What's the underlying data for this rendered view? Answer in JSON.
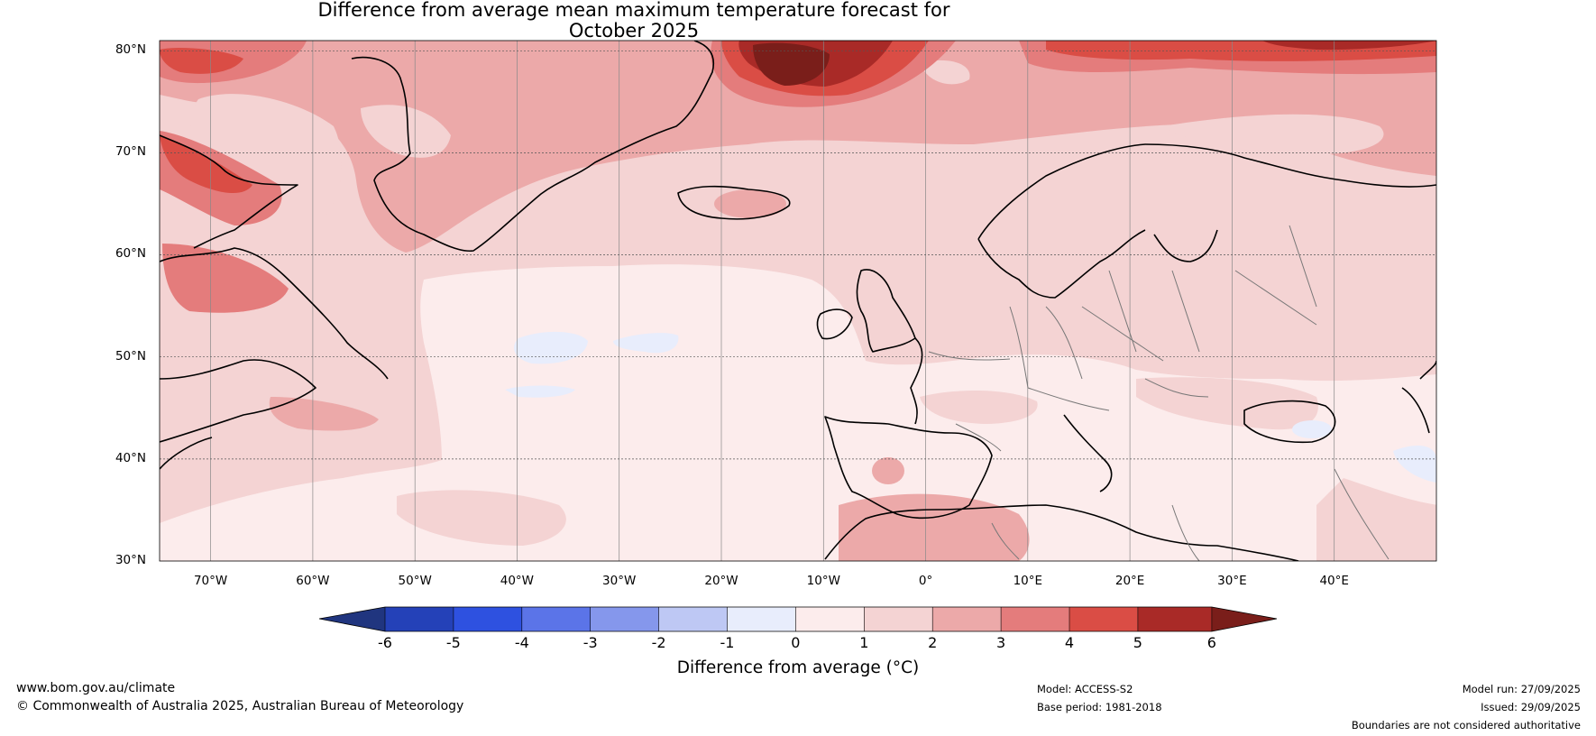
{
  "title": {
    "line1": "Difference from average mean maximum temperature forecast for",
    "line2": "October 2025"
  },
  "map": {
    "lat_labels": [
      "80°N",
      "70°N",
      "60°N",
      "50°N",
      "40°N",
      "30°N"
    ],
    "lon_labels": [
      "70°W",
      "60°W",
      "50°W",
      "40°W",
      "30°W",
      "20°W",
      "10°W",
      "0°",
      "10°E",
      "20°E",
      "30°E",
      "40°E"
    ],
    "lat_range": [
      30,
      81
    ],
    "lon_range": [
      -75,
      50
    ]
  },
  "colorbar": {
    "ticks": [
      "-6",
      "-5",
      "-4",
      "-3",
      "-2",
      "-1",
      "0",
      "1",
      "2",
      "3",
      "4",
      "5",
      "6"
    ],
    "colors": [
      "#20357f",
      "#2441b8",
      "#2e51e0",
      "#5b74e8",
      "#8597ec",
      "#bec8f4",
      "#e8edfc",
      "#fcecec",
      "#f4d3d3",
      "#eca9a9",
      "#e47c7c",
      "#da4d45",
      "#a92a27",
      "#7a1e1a"
    ],
    "label": "Difference from average (°C)"
  },
  "footer": {
    "website": "www.bom.gov.au/climate",
    "copyright": "© Commonwealth of Australia 2025, Australian Bureau of Meteorology",
    "model": "Model: ACCESS-S2",
    "base_period": "Base period: 1981-2018",
    "model_run": "Model run: 27/09/2025",
    "issued": "Issued: 29/09/2025",
    "disclaimer": "Boundaries are not considered authoritative"
  }
}
